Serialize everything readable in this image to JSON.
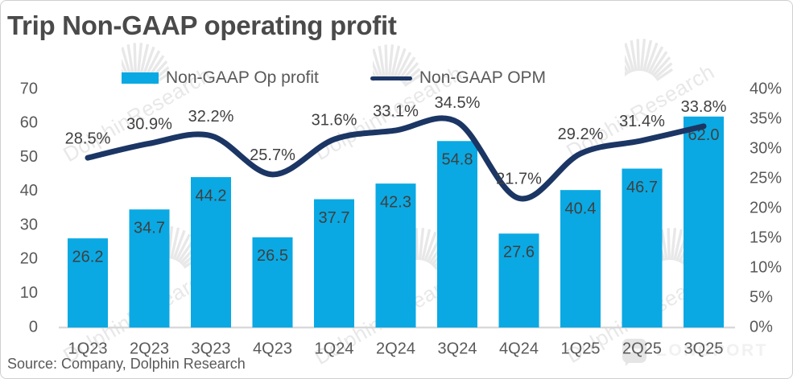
{
  "title": "Trip Non-GAAP operating profit",
  "source": "Source: Company, Dolphin Research",
  "watermark": {
    "text": "DolphinResearch",
    "logo_text": "LONGPORT"
  },
  "legend": [
    {
      "label": "Non-GAAP Op profit",
      "type": "bar"
    },
    {
      "label": "Non-GAAP OPM",
      "type": "line"
    }
  ],
  "colors": {
    "bar": "#0aa9e3",
    "line": "#1b3664",
    "axis_line": "#d9d9d9",
    "data_label": "#404040",
    "tick_label": "#595959",
    "title": "#4a4a4a",
    "watermark": "#e8e8e8"
  },
  "chart_data": {
    "type": "bar+line combo",
    "title": "Trip Non-GAAP operating profit",
    "categories": [
      "1Q23",
      "2Q23",
      "3Q23",
      "4Q23",
      "1Q24",
      "2Q24",
      "3Q24",
      "4Q24",
      "1Q25",
      "2Q25",
      "3Q25"
    ],
    "series": [
      {
        "name": "Non-GAAP Op profit",
        "type": "bar",
        "axis": "left",
        "values": [
          26.2,
          34.7,
          44.2,
          26.5,
          37.7,
          42.3,
          54.8,
          27.6,
          40.4,
          46.7,
          62.0
        ],
        "labels": [
          "26.2",
          "34.7",
          "44.2",
          "26.5",
          "37.7",
          "42.3",
          "54.8",
          "27.6",
          "40.4",
          "46.7",
          "62.0"
        ]
      },
      {
        "name": "Non-GAAP OPM",
        "type": "line",
        "axis": "right",
        "values": [
          28.5,
          30.9,
          32.2,
          25.7,
          31.6,
          33.1,
          34.5,
          21.7,
          29.2,
          31.4,
          33.8
        ],
        "labels": [
          "28.5%",
          "30.9%",
          "32.2%",
          "25.7%",
          "31.6%",
          "33.1%",
          "34.5%",
          "21.7%",
          "29.2%",
          "31.4%",
          "33.8%"
        ]
      }
    ],
    "left_axis": {
      "min": 0,
      "max": 70,
      "ticks": [
        "70",
        "60",
        "50",
        "40",
        "30",
        "20",
        "10",
        "0"
      ]
    },
    "right_axis": {
      "min": 0,
      "max": 40,
      "ticks": [
        "40%",
        "35%",
        "30%",
        "25%",
        "20%",
        "15%",
        "10%",
        "5%",
        "0%"
      ]
    },
    "grid": false,
    "legend_position": "top"
  }
}
